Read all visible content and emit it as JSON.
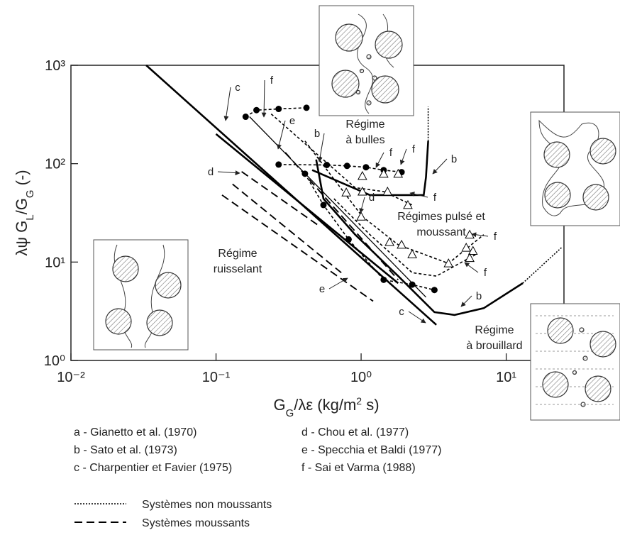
{
  "chart_data": {
    "type": "line",
    "xlabel": [
      {
        "text": "G"
      },
      {
        "text": "G",
        "sub": true
      },
      {
        "text": "/λε (kg/m"
      },
      {
        "text": "2",
        "sup": true
      },
      {
        "text": " s)"
      }
    ],
    "ylabel": [
      {
        "text": "λψ G"
      },
      {
        "text": "L",
        "sub": true
      },
      {
        "text": "/G"
      },
      {
        "text": "G",
        "sub": true
      },
      {
        "text": " (-)"
      }
    ],
    "xlog": true,
    "ylog": true,
    "xlim": [
      0.01,
      25
    ],
    "ylim": [
      1,
      1000
    ],
    "xticks": [
      {
        "value": 0.01,
        "label": "10⁻²"
      },
      {
        "value": 0.1,
        "label": "10⁻¹"
      },
      {
        "value": 1,
        "label": "10⁰"
      },
      {
        "value": 10,
        "label": "10¹"
      }
    ],
    "yticks": [
      {
        "value": 1,
        "label": "10⁰"
      },
      {
        "value": 10,
        "label": "10¹"
      },
      {
        "value": 100,
        "label": "10²"
      },
      {
        "value": 1000,
        "label": "10³"
      }
    ],
    "color": "#000000",
    "series": [
      {
        "style": "thick",
        "marker": "none",
        "x": [
          0.033,
          3.3
        ],
        "y": [
          1000,
          2.3
        ]
      },
      {
        "style": "thick",
        "marker": "none",
        "x": [
          0.1,
          1.8
        ],
        "y": [
          200,
          6.1
        ]
      },
      {
        "style": "solid",
        "marker": "none",
        "x": [
          0.17,
          2.8
        ],
        "y": [
          300,
          4.4
        ]
      },
      {
        "style": "thick",
        "marker": "none",
        "x": [
          0.49,
          0.55,
          0.91,
          1.8,
          3.2,
          4.4,
          7.0,
          13
        ],
        "y": [
          110,
          44,
          19,
          7.2,
          3.1,
          2.9,
          3.4,
          6.1
        ]
      },
      {
        "style": "dotted",
        "marker": "none",
        "x": [
          13,
          24
        ],
        "y": [
          6.1,
          14
        ]
      },
      {
        "style": "thick",
        "marker": "none",
        "x": [
          0.46,
          1.15,
          1.8,
          2.7,
          2.8,
          2.9
        ],
        "y": [
          86,
          48,
          48,
          48,
          73,
          170
        ]
      },
      {
        "style": "dotted",
        "marker": "none",
        "x": [
          2.9,
          2.9
        ],
        "y": [
          170,
          380
        ]
      },
      {
        "style": "dashed",
        "marker": "circle",
        "x": [
          0.16,
          0.19,
          0.27,
          0.42
        ],
        "y": [
          300,
          350,
          360,
          370
        ]
      },
      {
        "style": "dashed",
        "marker": "circle",
        "x": [
          0.27,
          0.58,
          0.8,
          1.08,
          1.43,
          1.9
        ],
        "y": [
          98,
          97,
          95,
          92,
          86,
          82
        ]
      },
      {
        "style": "dashed",
        "marker": "circle",
        "x": [
          0.41,
          0.55,
          0.82,
          1.43,
          2.25,
          3.2
        ],
        "y": [
          79,
          38,
          17,
          6.6,
          5.9,
          5.2
        ]
      },
      {
        "style": "dashed",
        "marker": "none",
        "x": [
          0.24,
          0.91,
          1.43,
          2.25
        ],
        "y": [
          320,
          57,
          52,
          38
        ]
      },
      {
        "style": "dashed",
        "marker": "none",
        "x": [
          0.41,
          1.02,
          1.8,
          4.0,
          7.0
        ],
        "y": [
          170,
          29,
          15,
          9.7,
          19
        ]
      },
      {
        "style": "dashed",
        "marker": "none",
        "x": [
          0.65,
          1.15,
          2.25,
          3.3,
          6.2
        ],
        "y": [
          44,
          19,
          7.8,
          7.2,
          12
        ]
      },
      {
        "style": "none",
        "marker": "triangle",
        "x": [
          1.02,
          1.43,
          1.8,
          0.79,
          1.02,
          1.52,
          2.1,
          1.0,
          1.57,
          1.9,
          2.25,
          4.0,
          5.6,
          5.3,
          5.9,
          5.6
        ],
        "y": [
          75,
          79,
          79,
          51,
          52,
          52,
          38,
          29,
          16,
          15,
          12,
          9.7,
          19,
          14,
          13,
          11
        ]
      },
      {
        "style": "longdash",
        "marker": "none",
        "x": [
          0.15,
          0.52
        ],
        "y": [
          83,
          23
        ]
      },
      {
        "style": "longdash",
        "marker": "none",
        "x": [
          0.13,
          0.73
        ],
        "y": [
          62,
          7.8
        ]
      },
      {
        "style": "longdash",
        "marker": "none",
        "x": [
          0.11,
          1.21
        ],
        "y": [
          48,
          4.0
        ]
      },
      {
        "style": "longdash",
        "marker": "none",
        "x": [
          0.3,
          1.8
        ],
        "y": [
          130,
          6.6
        ]
      }
    ],
    "annotations": [
      "c",
      "f",
      "e",
      "b",
      "f",
      "f",
      "b",
      "d",
      "d",
      "f",
      "f",
      "f",
      "e",
      "c",
      "b"
    ],
    "regions": [
      [
        "Régime",
        "à bulles"
      ],
      [
        "Régimes pulsé et",
        "moussant"
      ],
      [
        "Régime",
        "ruisselant"
      ],
      [
        "Régime",
        "à brouillard"
      ]
    ],
    "references": [
      "a - Gianetto et al. (1970)",
      "b - Sato et al. (1973)",
      "c - Charpentier et Favier (1975)",
      "d - Chou et al. (1977)",
      "e - Specchia et Baldi (1977)",
      "f - Sai et Varma (1988)"
    ],
    "line_legend": [
      {
        "style": "dotted",
        "label": "Systèmes non moussants"
      },
      {
        "style": "longdash",
        "label": "Systèmes moussants"
      }
    ]
  }
}
